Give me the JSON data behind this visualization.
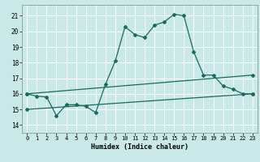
{
  "xlabel": "Humidex (Indice chaleur)",
  "xlim": [
    -0.5,
    23.5
  ],
  "ylim": [
    13.5,
    21.7
  ],
  "yticks": [
    14,
    15,
    16,
    17,
    18,
    19,
    20,
    21
  ],
  "xticks": [
    0,
    1,
    2,
    3,
    4,
    5,
    6,
    7,
    8,
    9,
    10,
    11,
    12,
    13,
    14,
    15,
    16,
    17,
    18,
    19,
    20,
    21,
    22,
    23
  ],
  "background_color": "#c9e8e8",
  "grid_color": "#ffffff",
  "line_color": "#1a6b5e",
  "line1_x": [
    0,
    1,
    2,
    3,
    4,
    5,
    6,
    7,
    8,
    9,
    10,
    11,
    12,
    13,
    14,
    15,
    16,
    17,
    18,
    19,
    20,
    21,
    22,
    23
  ],
  "line1_y": [
    16.0,
    15.85,
    15.8,
    14.6,
    15.3,
    15.3,
    15.2,
    14.8,
    16.6,
    18.1,
    20.3,
    19.8,
    19.6,
    20.4,
    20.6,
    21.1,
    21.0,
    18.7,
    17.2,
    17.2,
    16.5,
    16.3,
    16.0,
    16.0
  ],
  "line2_x": [
    0,
    23
  ],
  "line2_y": [
    16.0,
    17.2
  ],
  "line3_x": [
    0,
    23
  ],
  "line3_y": [
    15.0,
    16.0
  ]
}
